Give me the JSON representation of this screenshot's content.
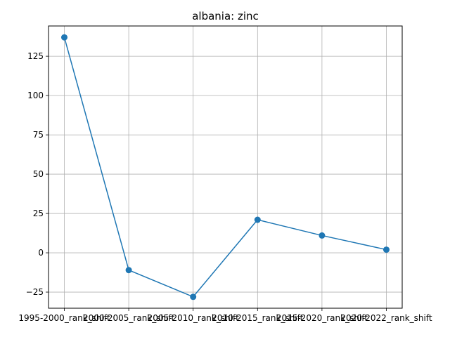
{
  "chart_data": {
    "type": "line",
    "title": "albania: zinc",
    "xlabel": "",
    "ylabel": "",
    "categories": [
      "1995-2000_rank_shift",
      "2000-2005_rank_shift",
      "2005-2010_rank_shift",
      "2010-2015_rank_shift",
      "2015-2020_rank_shift",
      "2020-2022_rank_shift"
    ],
    "series": [
      {
        "values": [
          137,
          -11,
          -28,
          21,
          11,
          2
        ]
      }
    ],
    "yticks": [
      -25,
      0,
      25,
      50,
      75,
      100,
      125
    ],
    "ylim": [
      -35.25,
      144.25
    ],
    "grid": true,
    "line_color": "#1f77b4"
  }
}
